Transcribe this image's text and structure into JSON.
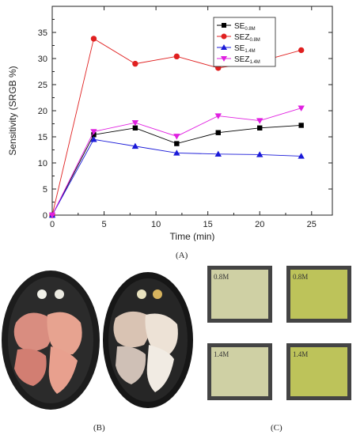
{
  "chart_data": {
    "type": "line",
    "xlabel": "Time (min)",
    "ylabel": "Sensitivity (SRGB %)",
    "xlim": [
      0,
      27
    ],
    "ylim": [
      0,
      40
    ],
    "xticks": [
      0,
      5,
      10,
      15,
      20,
      25
    ],
    "yticks": [
      0,
      5,
      10,
      15,
      20,
      25,
      30,
      35
    ],
    "grid": false,
    "legend_position": "top-right",
    "x": [
      0,
      4,
      8,
      12,
      16,
      20,
      24
    ],
    "series": [
      {
        "name": "SE",
        "subscript": "0.8M",
        "color": "#000000",
        "marker": "square",
        "values": [
          0,
          15.4,
          16.7,
          13.7,
          15.8,
          16.7,
          17.2
        ]
      },
      {
        "name": "SEZ",
        "subscript": "0.8M",
        "color": "#e02020",
        "marker": "circle",
        "values": [
          0,
          33.8,
          29.0,
          30.4,
          28.2,
          29.4,
          31.6
        ]
      },
      {
        "name": "SE",
        "subscript": "1.4M",
        "color": "#1a1ad8",
        "marker": "triangle-up",
        "values": [
          0,
          14.5,
          13.2,
          11.9,
          11.7,
          11.6,
          11.3
        ]
      },
      {
        "name": "SEZ",
        "subscript": "1.4M",
        "color": "#e020e0",
        "marker": "triangle-down",
        "values": [
          0,
          16.0,
          17.7,
          15.1,
          19.0,
          18.1,
          20.5
        ]
      }
    ]
  },
  "panels": {
    "a_label": "(A)",
    "b_label": "(B)",
    "c_label": "(C)"
  },
  "sensors": {
    "label_top_left": "0.8M",
    "label_top_right": "0.8M",
    "label_bottom_left": "1.4M",
    "label_bottom_right": "1.4M"
  }
}
